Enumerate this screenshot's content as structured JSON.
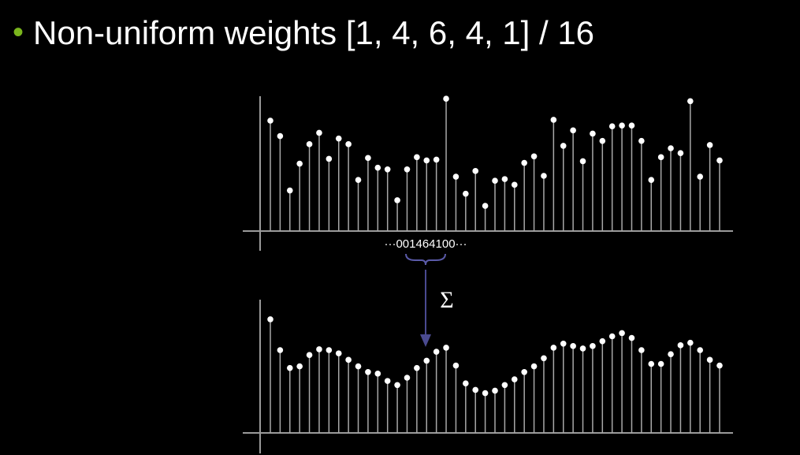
{
  "title": "Non-uniform weights [1, 4, 6, 4, 1] / 16",
  "chart_data": [
    {
      "type": "stem",
      "annotation": "···001464100···",
      "color": "#ffffff",
      "stem_color": "#a8a8a8",
      "ylim": [
        0,
        170
      ],
      "values": [
        136,
        117,
        50,
        83,
        107,
        121,
        89,
        114,
        107,
        63,
        90,
        78,
        76,
        38,
        76,
        91,
        87,
        88,
        163,
        67,
        46,
        74,
        31,
        62,
        64,
        57,
        84,
        92,
        68,
        137,
        105,
        124,
        86,
        120,
        111,
        129,
        130,
        130,
        111,
        63,
        91,
        102,
        96,
        160,
        67,
        106,
        87
      ]
    },
    {
      "type": "stem",
      "annotation": "Σ",
      "color": "#ffffff",
      "stem_color": "#a8a8a8",
      "ylim": [
        0,
        170
      ],
      "values": [
        140,
        102,
        80,
        82,
        96,
        103,
        102,
        98,
        90,
        82,
        75,
        73,
        64,
        59,
        68,
        80,
        89,
        100,
        105,
        83,
        61,
        53,
        49,
        52,
        59,
        66,
        75,
        82,
        92,
        105,
        110,
        107,
        104,
        107,
        113,
        119,
        123,
        117,
        102,
        85,
        85,
        97,
        108,
        111,
        102,
        90,
        83
      ]
    }
  ]
}
